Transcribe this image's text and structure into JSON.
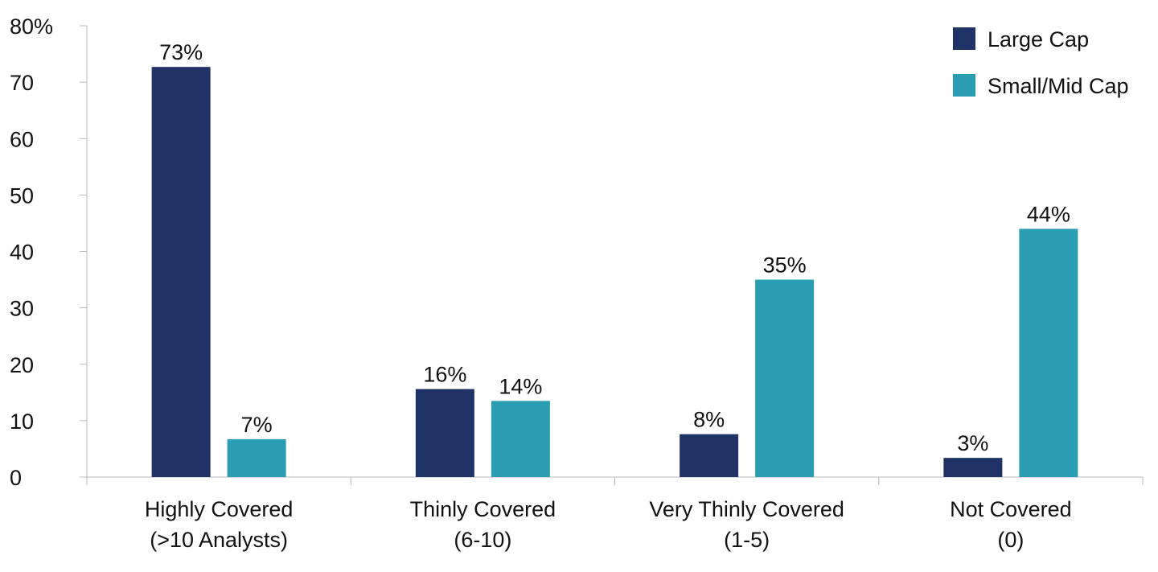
{
  "chart_data": {
    "type": "bar",
    "categories": [
      [
        "Highly Covered",
        "(>10 Analysts)"
      ],
      [
        "Thinly Covered",
        "(6-10)"
      ],
      [
        "Very Thinly Covered",
        "(1-5)"
      ],
      [
        "Not Covered",
        "(0)"
      ]
    ],
    "series": [
      {
        "name": "Large Cap",
        "color": "#1f3366",
        "values": [
          72.7,
          15.6,
          7.6,
          3.4
        ],
        "labels": [
          "73%",
          "16%",
          "8%",
          "3%"
        ]
      },
      {
        "name": "Small/Mid Cap",
        "color": "#2b9db3",
        "values": [
          6.7,
          13.5,
          35.0,
          44.0
        ],
        "labels": [
          "7%",
          "14%",
          "35%",
          "44%"
        ]
      }
    ],
    "y_ticks": [
      "0",
      "10",
      "20",
      "30",
      "40",
      "50",
      "60",
      "70",
      "80%"
    ],
    "ylim": [
      0,
      80
    ],
    "grid": false,
    "legend_position": "top-right",
    "title": "",
    "xlabel": "",
    "ylabel": ""
  }
}
